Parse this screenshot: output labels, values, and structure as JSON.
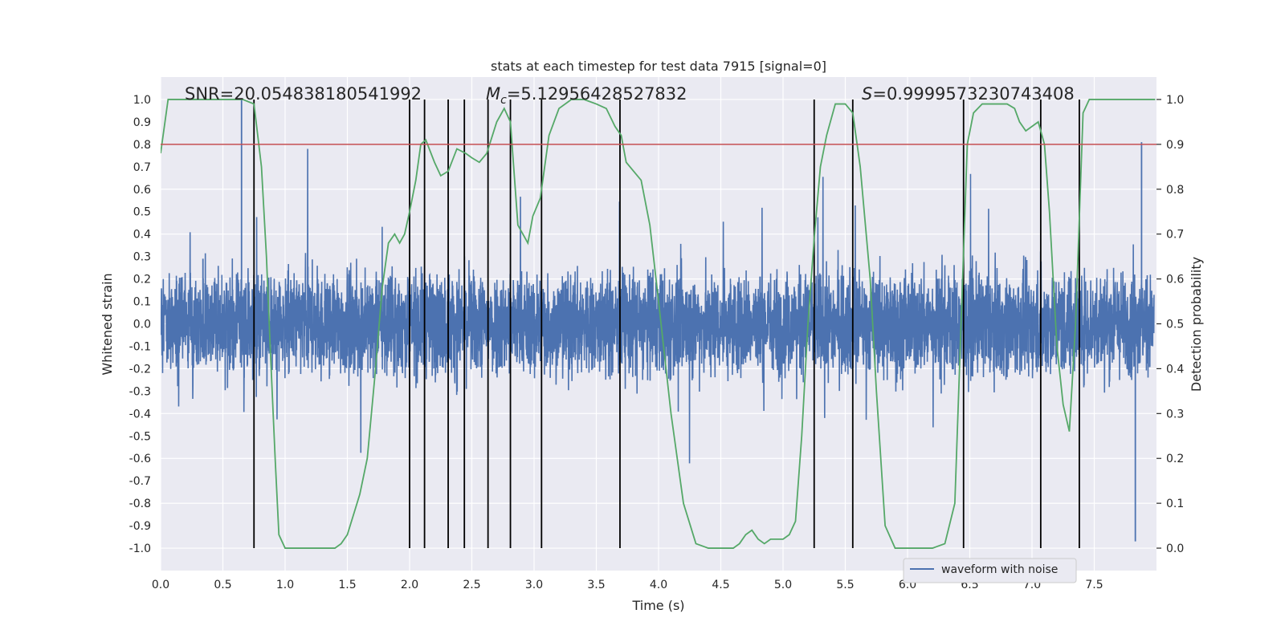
{
  "chart_data": {
    "type": "line",
    "title": "stats at each timestep for test data 7915 [signal=0]",
    "xlabel": "Time (s)",
    "ylabel_left": "Whitened strain",
    "ylabel_right": "Detection probability",
    "xlim": [
      0.0,
      8.0
    ],
    "ylim_left": [
      -1.1,
      1.1
    ],
    "ylim_right": [
      -0.05,
      1.05
    ],
    "xticks": [
      "0.0",
      "0.5",
      "1.0",
      "1.5",
      "2.0",
      "2.5",
      "3.0",
      "3.5",
      "4.0",
      "4.5",
      "5.0",
      "5.5",
      "6.0",
      "6.5",
      "7.0",
      "7.5"
    ],
    "xtick_values": [
      0.0,
      0.5,
      1.0,
      1.5,
      2.0,
      2.5,
      3.0,
      3.5,
      4.0,
      4.5,
      5.0,
      5.5,
      6.0,
      6.5,
      7.0,
      7.5
    ],
    "yticks_left": [
      "1.0",
      "0.9",
      "0.8",
      "0.7",
      "0.6",
      "0.5",
      "0.4",
      "0.3",
      "0.2",
      "0.1",
      "0.0",
      "-0.1",
      "-0.2",
      "-0.3",
      "-0.4",
      "-0.5",
      "-0.6",
      "-0.7",
      "-0.8",
      "-0.9",
      "-1.0"
    ],
    "ytick_values_left": [
      1.0,
      0.9,
      0.8,
      0.7,
      0.6,
      0.5,
      0.4,
      0.3,
      0.2,
      0.1,
      0.0,
      -0.1,
      -0.2,
      -0.3,
      -0.4,
      -0.5,
      -0.6,
      -0.7,
      -0.8,
      -0.9,
      -1.0
    ],
    "yticks_right": [
      "1.0",
      "0.9",
      "0.8",
      "0.7",
      "0.6",
      "0.5",
      "0.4",
      "0.3",
      "0.2",
      "0.1",
      "0.0"
    ],
    "ytick_values_right": [
      1.0,
      0.9,
      0.8,
      0.7,
      0.6,
      0.5,
      0.4,
      0.3,
      0.2,
      0.1,
      0.0
    ],
    "annotations": {
      "snr_label": "SNR=20.054838180541992",
      "mc_prefix": "M",
      "mc_sub": "c",
      "mc_value": "=5.12956428527832",
      "s_prefix": "S",
      "s_value": "=0.9999573230743408"
    },
    "threshold": {
      "value": 0.9,
      "axis": "right",
      "color": "#c44e52"
    },
    "series": [
      {
        "name": "waveform with noise",
        "axis": "left",
        "color": "#4c72b0",
        "kind": "noise",
        "typical_amplitude": 0.4,
        "max_amplitude": 1.0,
        "spikes": [
          [
            0.65,
            1.0
          ],
          [
            7.88,
            0.81
          ],
          [
            7.83,
            -0.97
          ],
          [
            0.34,
            0.29
          ]
        ]
      },
      {
        "name": "detection probability",
        "axis": "right",
        "color": "#55a868",
        "points": [
          [
            0.0,
            0.88
          ],
          [
            0.06,
            1.0
          ],
          [
            0.1,
            1.0
          ],
          [
            0.2,
            1.0
          ],
          [
            0.3,
            1.0
          ],
          [
            0.4,
            1.0
          ],
          [
            0.5,
            1.0
          ],
          [
            0.6,
            1.0
          ],
          [
            0.66,
            1.0
          ],
          [
            0.75,
            0.99
          ],
          [
            0.81,
            0.85
          ],
          [
            0.85,
            0.65
          ],
          [
            0.88,
            0.45
          ],
          [
            0.92,
            0.2
          ],
          [
            0.95,
            0.03
          ],
          [
            1.0,
            0.0
          ],
          [
            1.1,
            0.0
          ],
          [
            1.2,
            0.0
          ],
          [
            1.3,
            0.0
          ],
          [
            1.4,
            0.0
          ],
          [
            1.45,
            0.01
          ],
          [
            1.5,
            0.03
          ],
          [
            1.6,
            0.12
          ],
          [
            1.66,
            0.2
          ],
          [
            1.72,
            0.38
          ],
          [
            1.78,
            0.58
          ],
          [
            1.83,
            0.68
          ],
          [
            1.88,
            0.7
          ],
          [
            1.92,
            0.68
          ],
          [
            1.96,
            0.7
          ],
          [
            2.0,
            0.75
          ],
          [
            2.05,
            0.82
          ],
          [
            2.09,
            0.9
          ],
          [
            2.13,
            0.91
          ],
          [
            2.2,
            0.86
          ],
          [
            2.25,
            0.83
          ],
          [
            2.31,
            0.84
          ],
          [
            2.38,
            0.89
          ],
          [
            2.45,
            0.88
          ],
          [
            2.5,
            0.87
          ],
          [
            2.56,
            0.86
          ],
          [
            2.62,
            0.88
          ],
          [
            2.7,
            0.95
          ],
          [
            2.76,
            0.98
          ],
          [
            2.81,
            0.95
          ],
          [
            2.87,
            0.72
          ],
          [
            2.91,
            0.7
          ],
          [
            2.95,
            0.68
          ],
          [
            2.99,
            0.74
          ],
          [
            3.05,
            0.78
          ],
          [
            3.12,
            0.92
          ],
          [
            3.2,
            0.98
          ],
          [
            3.3,
            1.0
          ],
          [
            3.4,
            1.0
          ],
          [
            3.5,
            0.99
          ],
          [
            3.58,
            0.98
          ],
          [
            3.65,
            0.94
          ],
          [
            3.7,
            0.92
          ],
          [
            3.74,
            0.86
          ],
          [
            3.8,
            0.84
          ],
          [
            3.86,
            0.82
          ],
          [
            3.93,
            0.72
          ],
          [
            4.0,
            0.55
          ],
          [
            4.1,
            0.3
          ],
          [
            4.2,
            0.1
          ],
          [
            4.3,
            0.01
          ],
          [
            4.4,
            0.0
          ],
          [
            4.5,
            0.0
          ],
          [
            4.6,
            0.0
          ],
          [
            4.65,
            0.01
          ],
          [
            4.7,
            0.03
          ],
          [
            4.75,
            0.04
          ],
          [
            4.8,
            0.02
          ],
          [
            4.85,
            0.01
          ],
          [
            4.9,
            0.02
          ],
          [
            5.0,
            0.02
          ],
          [
            5.05,
            0.03
          ],
          [
            5.1,
            0.06
          ],
          [
            5.15,
            0.25
          ],
          [
            5.2,
            0.5
          ],
          [
            5.25,
            0.69
          ],
          [
            5.3,
            0.85
          ],
          [
            5.35,
            0.92
          ],
          [
            5.42,
            0.99
          ],
          [
            5.5,
            0.99
          ],
          [
            5.56,
            0.97
          ],
          [
            5.62,
            0.85
          ],
          [
            5.7,
            0.6
          ],
          [
            5.75,
            0.35
          ],
          [
            5.82,
            0.05
          ],
          [
            5.9,
            0.0
          ],
          [
            6.0,
            0.0
          ],
          [
            6.1,
            0.0
          ],
          [
            6.2,
            0.0
          ],
          [
            6.3,
            0.01
          ],
          [
            6.38,
            0.1
          ],
          [
            6.43,
            0.5
          ],
          [
            6.48,
            0.9
          ],
          [
            6.53,
            0.97
          ],
          [
            6.6,
            0.99
          ],
          [
            6.7,
            0.99
          ],
          [
            6.8,
            0.99
          ],
          [
            6.86,
            0.98
          ],
          [
            6.9,
            0.95
          ],
          [
            6.95,
            0.93
          ],
          [
            7.0,
            0.94
          ],
          [
            7.05,
            0.95
          ],
          [
            7.1,
            0.9
          ],
          [
            7.14,
            0.75
          ],
          [
            7.2,
            0.45
          ],
          [
            7.25,
            0.32
          ],
          [
            7.3,
            0.26
          ],
          [
            7.35,
            0.5
          ],
          [
            7.41,
            0.97
          ],
          [
            7.46,
            1.0
          ],
          [
            7.6,
            1.0
          ],
          [
            7.8,
            1.0
          ],
          [
            7.99,
            1.0
          ]
        ]
      }
    ],
    "event_markers": {
      "color": "#000000",
      "axis": "right",
      "y_range": [
        0.0,
        1.0
      ],
      "x": [
        0.75,
        2.0,
        2.12,
        2.31,
        2.44,
        2.63,
        2.81,
        3.06,
        3.69,
        5.25,
        5.56,
        6.45,
        7.07,
        7.38
      ]
    },
    "legend": {
      "position": "lower-right",
      "entries": [
        "waveform with noise"
      ]
    },
    "grid": true
  }
}
